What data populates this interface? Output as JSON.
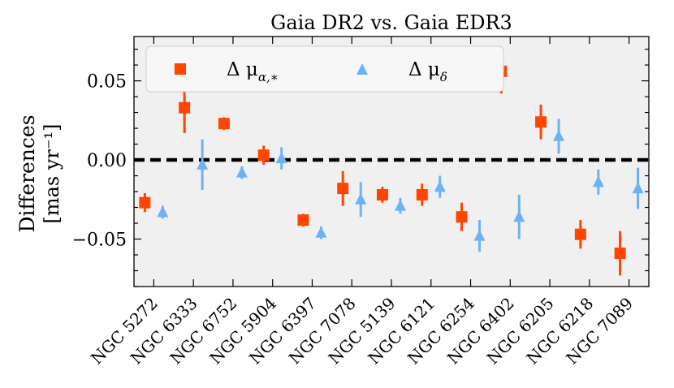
{
  "chart_data": {
    "type": "scatter",
    "title": "Gaia DR2  vs.  Gaia EDR3",
    "ylabel_line1": "Differences",
    "ylabel_line2": "[mas yr⁻¹]",
    "xlabel": "",
    "ylim": [
      -0.08,
      0.078
    ],
    "yticks": [
      -0.05,
      0.0,
      0.05
    ],
    "ytick_labels": [
      "−0.05",
      "0.00",
      "0.05"
    ],
    "reference_line": 0.0,
    "categories": [
      "NGC 5272",
      "NGC 6333",
      "NGC 6752",
      "NGC 5904",
      "NGC 6397",
      "NGC 7078",
      "NGC 5139",
      "NGC 6121",
      "NGC 6254",
      "NGC 6402",
      "NGC 6205",
      "NGC 6218",
      "NGC 7089"
    ],
    "legend_position": "top-left",
    "series": [
      {
        "name": "Δ μα,*",
        "legend_symbol": "Δ μ",
        "legend_sub": "α,∗",
        "color": "#ff4500",
        "marker": "square",
        "values": [
          -0.027,
          0.033,
          0.023,
          0.003,
          -0.038,
          -0.018,
          -0.022,
          -0.022,
          -0.036,
          0.056,
          0.024,
          -0.047,
          -0.059
        ],
        "errors": [
          0.006,
          0.016,
          0.004,
          0.006,
          0.004,
          0.011,
          0.005,
          0.007,
          0.009,
          0.014,
          0.011,
          0.009,
          0.014
        ]
      },
      {
        "name": "Δ μδ",
        "legend_symbol": "Δ μ",
        "legend_sub": "δ",
        "color": "#6eb2f4",
        "marker": "triangle",
        "values": [
          -0.033,
          -0.003,
          -0.008,
          0.001,
          -0.046,
          -0.025,
          -0.029,
          -0.017,
          -0.048,
          -0.036,
          0.015,
          -0.014,
          -0.018
        ],
        "errors": [
          0.004,
          0.016,
          0.004,
          0.007,
          0.004,
          0.011,
          0.005,
          0.007,
          0.01,
          0.014,
          0.011,
          0.008,
          0.013
        ]
      }
    ]
  }
}
